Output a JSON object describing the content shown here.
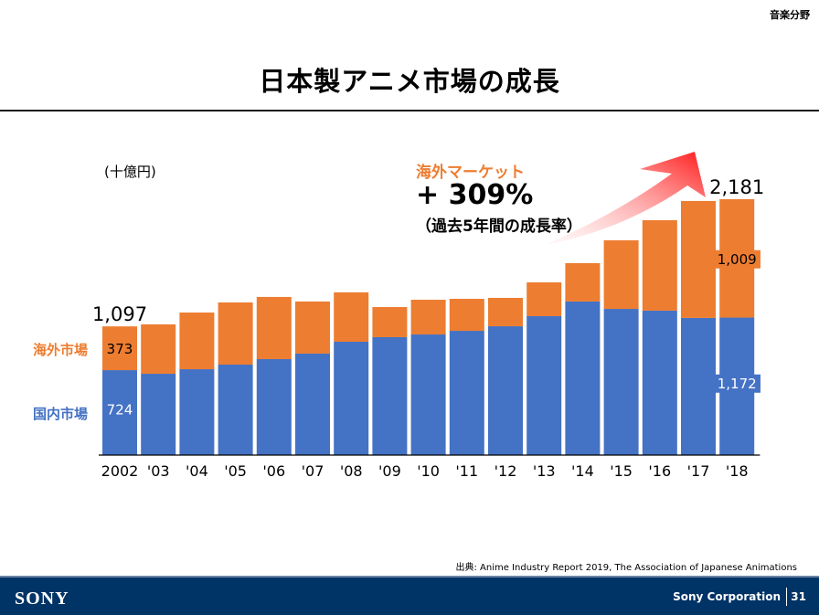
{
  "header": {
    "section_tag": "音楽分野",
    "title": "日本製アニメ市場の成長"
  },
  "callout": {
    "heading": "海外マーケット",
    "value": "+ 309%",
    "note": "（過去5年間の成長率）"
  },
  "legend": {
    "overseas": "海外市場",
    "domestic": "国内市場"
  },
  "colors": {
    "overseas": "#ED7D31",
    "domestic": "#4472C4",
    "arrow_start": "#FFD0D0",
    "arrow_end": "#FF1A1A",
    "footer": "#003366"
  },
  "source": "出典: Anime Industry Report 2019, The Association of Japanese Animations",
  "footer": {
    "logo": "SONY",
    "company": "Sony Corporation",
    "page": "31"
  },
  "chart_data": {
    "type": "bar",
    "stacked": true,
    "title": "日本製アニメ市場の成長",
    "unit_label": "(十億円)",
    "xlabel": "",
    "ylabel": "",
    "ylim": [
      0,
      2181
    ],
    "grid": false,
    "categories": [
      "2002",
      "'03",
      "'04",
      "'05",
      "'06",
      "'07",
      "'08",
      "'09",
      "'10",
      "'11",
      "'12",
      "'13",
      "'14",
      "'15",
      "'16",
      "'17",
      "'18"
    ],
    "series": [
      {
        "name": "国内市場",
        "values": [
          724,
          693,
          732,
          771,
          818,
          865,
          966,
          1005,
          1028,
          1059,
          1098,
          1184,
          1309,
          1246,
          1231,
          1169,
          1172
        ]
      },
      {
        "name": "海外市場",
        "values": [
          373,
          421,
          483,
          530,
          530,
          444,
          421,
          257,
          296,
          273,
          242,
          288,
          327,
          585,
          771,
          997,
          1009
        ]
      }
    ],
    "data_labels": [
      {
        "category": "2002",
        "series": "国内市場",
        "text": "724"
      },
      {
        "category": "2002",
        "series": "海外市場",
        "text": "373"
      },
      {
        "category": "2002",
        "series": "total",
        "text": "1,097"
      },
      {
        "category": "'18",
        "series": "国内市場",
        "text": "1,172"
      },
      {
        "category": "'18",
        "series": "海外市場",
        "text": "1,009"
      },
      {
        "category": "'18",
        "series": "total",
        "text": "2,181"
      }
    ]
  }
}
